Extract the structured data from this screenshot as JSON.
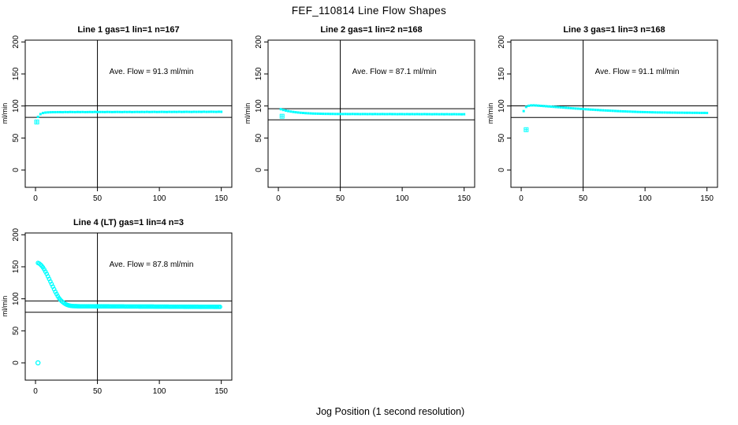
{
  "title": "FEF_110814  Line Flow Shapes",
  "xlabel": "Jog Position (1 second resolution)",
  "colors": {
    "points": "#00FFFF",
    "axis": "#000000",
    "background": "#FFFFFF"
  },
  "chart_data": [
    {
      "type": "scatter",
      "title": "Line 1 gas=1 lin=1 n=167",
      "annotation": "Ave. Flow =  91.3  ml/min",
      "ylabel": "ml/min",
      "x_ticks": [
        0,
        50,
        100,
        150
      ],
      "y_ticks": [
        0,
        50,
        100,
        150,
        200
      ],
      "xlim": [
        -8.3,
        158.5
      ],
      "ylim": [
        -27,
        202.8
      ],
      "ref_lines_y": [
        100.4,
        82.2
      ],
      "ref_line_x": 50,
      "marker": "square",
      "series": {
        "x_start": 2,
        "x_step": 2,
        "y": [
          83,
          87.3,
          89,
          89.7,
          90,
          90.2,
          90.3,
          90.3,
          90.4,
          90.4,
          90.3,
          90.5,
          90.4,
          90.6,
          90.5,
          90.4,
          90.6,
          90.5,
          90.6,
          90.4,
          90.5,
          90.6,
          90.5,
          90.7,
          90.5,
          90.6,
          90.6,
          90.5,
          90.7,
          90.6,
          90.5,
          90.6,
          90.7,
          90.6,
          90.5,
          90.7,
          90.6,
          90.7,
          90.5,
          90.6,
          90.7,
          90.6,
          90.7,
          90.6,
          90.8,
          90.6,
          90.7,
          90.8,
          90.6,
          90.7,
          90.8,
          90.7,
          90.6,
          90.8,
          90.7,
          90.8,
          90.7,
          90.9,
          90.7,
          90.8,
          90.9,
          90.8,
          90.7,
          90.9,
          90.8,
          90.9,
          90.8,
          91,
          90.8,
          90.9,
          91,
          90.9,
          90.8,
          91,
          90.9
        ]
      },
      "outliers": [
        {
          "x": 1,
          "y": 75,
          "marker": "square-plus"
        }
      ]
    },
    {
      "type": "scatter",
      "title": "Line 2 gas=1 lin=2 n=168",
      "annotation": "Ave. Flow =  87.1  ml/min",
      "ylabel": "ml/min",
      "x_ticks": [
        0,
        50,
        100,
        150
      ],
      "y_ticks": [
        0,
        50,
        100,
        150,
        200
      ],
      "xlim": [
        -8.3,
        158.5
      ],
      "ylim": [
        -27,
        202.8
      ],
      "ref_lines_y": [
        95.8,
        78.4
      ],
      "ref_line_x": 50,
      "marker": "square",
      "series": {
        "x_start": 2,
        "x_step": 2,
        "y": [
          95,
          93.8,
          92.8,
          92,
          91.3,
          90.7,
          90.2,
          89.8,
          89.4,
          89.1,
          88.8,
          88.6,
          88.4,
          88.2,
          88.1,
          88,
          87.9,
          87.8,
          87.7,
          87.7,
          87.6,
          87.6,
          87.5,
          87.5,
          87.5,
          87.4,
          87.5,
          87.4,
          87.4,
          87.5,
          87.4,
          87.4,
          87.3,
          87.4,
          87.4,
          87.3,
          87.4,
          87.3,
          87.4,
          87.3,
          87.3,
          87.4,
          87.3,
          87.3,
          87.4,
          87.3,
          87.3,
          87.2,
          87.3,
          87.3,
          87.2,
          87.3,
          87.2,
          87.3,
          87.2,
          87.3,
          87.2,
          87.2,
          87.3,
          87.2,
          87.2,
          87.1,
          87.2,
          87.2,
          87.1,
          87.2,
          87.1,
          87.2,
          87.1,
          87.1,
          87.2,
          87.1,
          87.1,
          87,
          87.1
        ]
      },
      "outliers": [
        {
          "x": 3,
          "y": 84,
          "marker": "square-plus"
        }
      ]
    },
    {
      "type": "scatter",
      "title": "Line 3 gas=1 lin=3 n=168",
      "annotation": "Ave. Flow =  91.1  ml/min",
      "ylabel": "ml/min",
      "x_ticks": [
        0,
        50,
        100,
        150
      ],
      "y_ticks": [
        0,
        50,
        100,
        150,
        200
      ],
      "xlim": [
        -8.3,
        158.5
      ],
      "ylim": [
        -27,
        202.8
      ],
      "ref_lines_y": [
        100.2,
        82
      ],
      "ref_line_x": 50,
      "marker": "square",
      "series": {
        "x_start": 2,
        "x_step": 2,
        "y": [
          92,
          98.5,
          100.3,
          100.9,
          101,
          100.8,
          100.5,
          100.2,
          99.9,
          99.6,
          99.3,
          99,
          98.7,
          98.4,
          98.1,
          97.8,
          97.5,
          97.2,
          96.9,
          96.6,
          96.3,
          96,
          95.8,
          95.5,
          95.2,
          94.9,
          94.7,
          94.4,
          94.2,
          93.9,
          93.7,
          93.4,
          93.2,
          93,
          92.8,
          92.6,
          92.4,
          92.2,
          92,
          91.8,
          91.6,
          91.5,
          91.3,
          91.2,
          91,
          90.9,
          90.7,
          90.6,
          90.5,
          90.4,
          90.3,
          90.2,
          90.1,
          90,
          89.9,
          89.9,
          89.8,
          89.8,
          89.7,
          89.7,
          89.6,
          89.6,
          89.5,
          89.5,
          89.5,
          89.4,
          89.4,
          89.4,
          89.3,
          89.3,
          89.3,
          89.2,
          89.2,
          89.2,
          89.1
        ]
      },
      "outliers": [
        {
          "x": 4,
          "y": 63,
          "marker": "square-plus"
        }
      ]
    },
    {
      "type": "scatter",
      "title": "Line 4 (LT) gas=1 lin=4 n=3",
      "annotation": "Ave. Flow =  87.8  ml/min",
      "ylabel": "ml/min",
      "x_ticks": [
        0,
        50,
        100,
        150
      ],
      "y_ticks": [
        0,
        50,
        100,
        150,
        200
      ],
      "xlim": [
        -8.3,
        158.5
      ],
      "ylim": [
        -27,
        202.8
      ],
      "ref_lines_y": [
        96.6,
        79
      ],
      "ref_line_x": 50,
      "marker": "circle",
      "series": {
        "x_start": 2,
        "x_step": 1,
        "y": [
          156,
          155,
          153.5,
          151.5,
          149,
          146,
          142.5,
          139,
          135,
          131,
          127,
          123,
          119,
          115,
          111,
          107.5,
          104,
          101,
          98.5,
          96.5,
          94.8,
          93.3,
          92,
          91,
          90.2,
          89.6,
          89.2,
          88.9,
          88.7,
          88.6,
          88.5,
          88.5,
          88.4,
          88.4,
          88.3,
          88.3,
          88.3,
          88.3,
          88.3,
          88.3,
          88.3,
          88.3,
          88.3,
          88.3,
          88.3,
          88.3,
          88.2,
          88.2,
          88.2,
          88.2,
          88.2,
          88.2,
          88.2,
          88.2,
          88.2,
          88.2,
          88.2,
          88.2,
          88.1,
          88.1,
          88.1,
          88.1,
          88.1,
          88.1,
          88.1,
          88.1,
          88.1,
          88.1,
          88.1,
          88.1,
          88,
          88,
          88,
          88,
          88,
          88,
          88,
          88,
          88,
          88,
          88,
          88,
          87.9,
          87.9,
          87.9,
          87.9,
          87.9,
          87.9,
          87.9,
          87.9,
          87.9,
          87.9,
          87.9,
          87.9,
          87.8,
          87.8,
          87.8,
          87.8,
          87.8,
          87.8,
          87.8,
          87.8,
          87.8,
          87.8,
          87.8,
          87.8,
          87.7,
          87.7,
          87.7,
          87.7,
          87.7,
          87.7,
          87.7,
          87.7,
          87.7,
          87.7,
          87.7,
          87.7,
          87.6,
          87.6,
          87.6,
          87.6,
          87.6,
          87.6,
          87.6,
          87.6,
          87.6,
          87.6,
          87.6,
          87.6,
          87.5,
          87.5,
          87.5,
          87.5,
          87.5,
          87.5,
          87.5,
          87.5,
          87.5,
          87.5,
          87.5,
          87.5,
          87.4,
          87.4,
          87.4,
          87.4,
          87.4,
          87.4
        ]
      },
      "outliers": [
        {
          "x": 2,
          "y": 0,
          "marker": "circle"
        }
      ]
    }
  ]
}
